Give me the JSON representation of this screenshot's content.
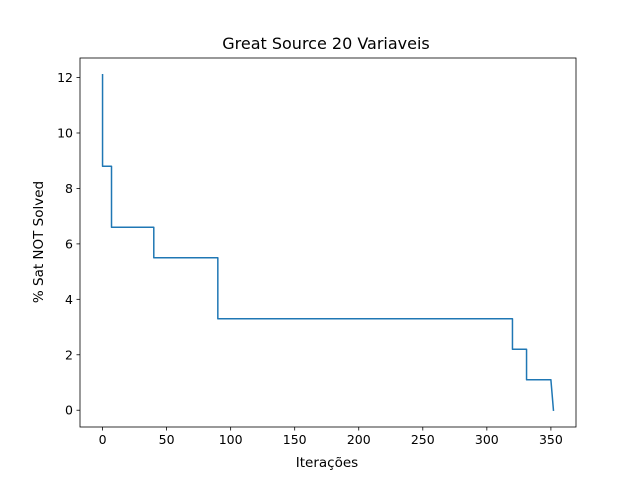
{
  "chart_data": {
    "type": "line",
    "title": "Great Source 20 Variaveis",
    "xlabel": "Iterações",
    "ylabel": "% Sat NOT Solved",
    "xlim": [
      -17.6,
      369.6
    ],
    "ylim": [
      -0.605,
      12.705
    ],
    "xticks": [
      0,
      50,
      100,
      150,
      200,
      250,
      300,
      350
    ],
    "yticks": [
      0,
      2,
      4,
      6,
      8,
      10,
      12
    ],
    "grid": false,
    "color": "#1f77b4",
    "series": [
      {
        "x": [
          0,
          0,
          5,
          5,
          7,
          7,
          39,
          39,
          40,
          40,
          88,
          88,
          90,
          90,
          318,
          318,
          320,
          320,
          329,
          329,
          331,
          331,
          350,
          350,
          352
        ],
        "y": [
          12.1,
          8.8,
          8.8,
          8.8,
          8.8,
          6.6,
          6.6,
          6.6,
          6.6,
          5.5,
          5.5,
          5.5,
          5.5,
          3.3,
          3.3,
          3.3,
          3.3,
          2.2,
          2.2,
          2.2,
          2.2,
          1.1,
          1.1,
          1.1,
          0.0
        ]
      }
    ]
  }
}
